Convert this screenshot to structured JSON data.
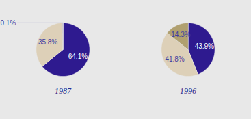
{
  "chart_data": [
    {
      "type": "pie",
      "title": "1987",
      "values": [
        64.1,
        35.8,
        0.1
      ],
      "value_labels": [
        "64.1%",
        "35.8%",
        "0.1%"
      ],
      "colors": [
        "#2e1a8f",
        "#ddd0b8",
        "#2e1a8f"
      ],
      "data_labels": true
    },
    {
      "type": "pie",
      "title": "1996",
      "values": [
        43.9,
        41.8,
        14.3
      ],
      "value_labels": [
        "43.9%",
        "41.8%",
        "14.3%"
      ],
      "colors": [
        "#2e1a8f",
        "#ddd0b8",
        "#b0a070"
      ],
      "data_labels": true
    }
  ]
}
